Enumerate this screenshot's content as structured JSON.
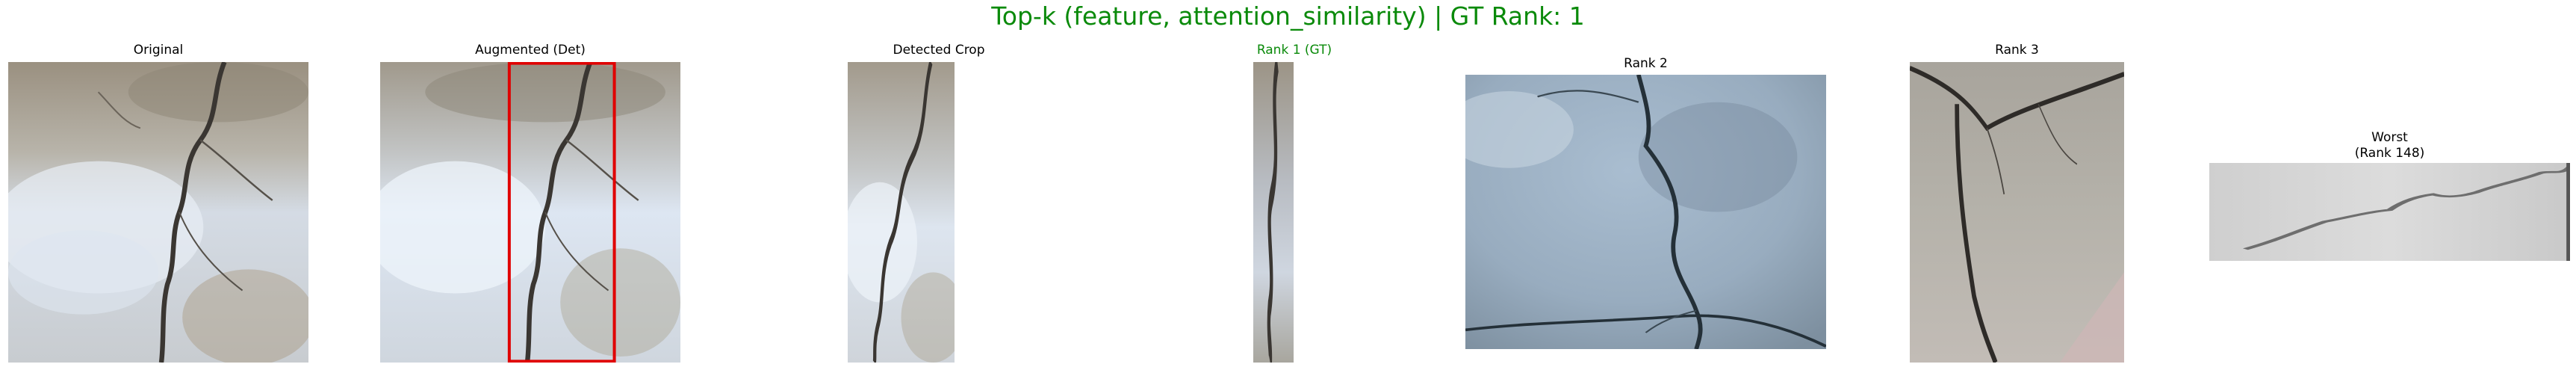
{
  "figure": {
    "title": "Top-k (feature, attention_similarity) | GT Rank: 1",
    "title_color": "#0a8a0a"
  },
  "panels": {
    "original": {
      "title": "Original"
    },
    "augmented": {
      "title": "Augmented (Det)",
      "box_color": "#e00000"
    },
    "detected_crop": {
      "title": "Detected Crop"
    },
    "rank1": {
      "title": "Rank 1 (GT)",
      "title_color": "#0a8a0a"
    },
    "rank2": {
      "title": "Rank 2"
    },
    "rank3": {
      "title": "Rank 3"
    },
    "worst": {
      "title_line1": "Worst",
      "title_line2": "(Rank 148)"
    }
  }
}
